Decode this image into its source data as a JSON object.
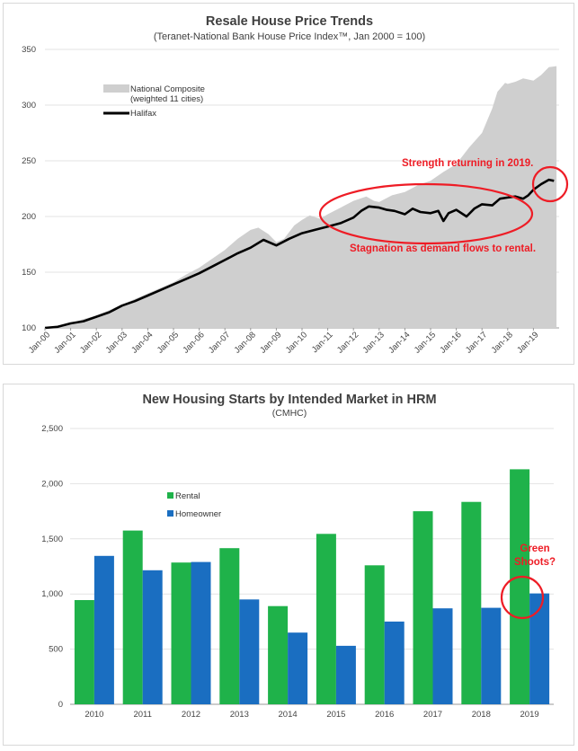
{
  "chart_data": [
    {
      "type": "area",
      "title": "Resale House Price Trends",
      "subtitle": "(Teranet-National Bank House Price Index™, Jan 2000 = 100)",
      "ylim": [
        100,
        350
      ],
      "yticks": [
        "100",
        "150",
        "200",
        "250",
        "300",
        "350"
      ],
      "x_labels": [
        "Jan-00",
        "Jan-01",
        "Jan-02",
        "Jan-03",
        "Jan-04",
        "Jan-05",
        "Jan-06",
        "Jan-07",
        "Jan-08",
        "Jan-09",
        "Jan-10",
        "Jan-11",
        "Jan-12",
        "Jan-13",
        "Jan-14",
        "Jan-15",
        "Jan-16",
        "Jan-17",
        "Jan-18",
        "Jan-19"
      ],
      "grid": true,
      "legend_position": "top-left",
      "series": [
        {
          "name": "National Composite",
          "name_line2": "(weighted 11 cities)",
          "style": "area",
          "color": "#cfcfcf",
          "points": [
            [
              2000.0,
              100
            ],
            [
              2000.5,
              102
            ],
            [
              2001.0,
              104
            ],
            [
              2001.5,
              108
            ],
            [
              2002.0,
              111
            ],
            [
              2002.5,
              116
            ],
            [
              2003.0,
              121
            ],
            [
              2003.5,
              126
            ],
            [
              2004.0,
              131
            ],
            [
              2004.5,
              136
            ],
            [
              2005.0,
              141
            ],
            [
              2005.5,
              148
            ],
            [
              2006.0,
              154
            ],
            [
              2006.5,
              162
            ],
            [
              2007.0,
              170
            ],
            [
              2007.5,
              180
            ],
            [
              2008.0,
              188
            ],
            [
              2008.3,
              190
            ],
            [
              2008.7,
              184
            ],
            [
              2009.0,
              177
            ],
            [
              2009.3,
              180
            ],
            [
              2009.7,
              192
            ],
            [
              2010.0,
              197
            ],
            [
              2010.3,
              201
            ],
            [
              2010.7,
              198
            ],
            [
              2011.0,
              202
            ],
            [
              2011.5,
              208
            ],
            [
              2012.0,
              214
            ],
            [
              2012.5,
              218
            ],
            [
              2012.8,
              214
            ],
            [
              2013.0,
              213
            ],
            [
              2013.5,
              219
            ],
            [
              2014.0,
              222
            ],
            [
              2014.5,
              228
            ],
            [
              2015.0,
              232
            ],
            [
              2015.5,
              240
            ],
            [
              2016.0,
              247
            ],
            [
              2016.5,
              262
            ],
            [
              2017.0,
              275
            ],
            [
              2017.4,
              297
            ],
            [
              2017.6,
              312
            ],
            [
              2017.9,
              320
            ],
            [
              2018.0,
              319
            ],
            [
              2018.3,
              321
            ],
            [
              2018.6,
              324
            ],
            [
              2019.0,
              322
            ],
            [
              2019.3,
              327
            ],
            [
              2019.6,
              334
            ],
            [
              2019.9,
              335
            ]
          ]
        },
        {
          "name": "Halifax",
          "style": "line",
          "color": "#000000",
          "points": [
            [
              2000.0,
              100
            ],
            [
              2000.5,
              101
            ],
            [
              2001.0,
              104
            ],
            [
              2001.5,
              106
            ],
            [
              2002.0,
              110
            ],
            [
              2002.5,
              114
            ],
            [
              2003.0,
              120
            ],
            [
              2003.5,
              124
            ],
            [
              2004.0,
              129
            ],
            [
              2004.5,
              134
            ],
            [
              2005.0,
              139
            ],
            [
              2005.5,
              144
            ],
            [
              2006.0,
              149
            ],
            [
              2006.5,
              155
            ],
            [
              2007.0,
              161
            ],
            [
              2007.5,
              167
            ],
            [
              2008.0,
              172
            ],
            [
              2008.5,
              179
            ],
            [
              2009.0,
              174
            ],
            [
              2009.5,
              180
            ],
            [
              2010.0,
              185
            ],
            [
              2010.5,
              188
            ],
            [
              2011.0,
              191
            ],
            [
              2011.5,
              194
            ],
            [
              2012.0,
              199
            ],
            [
              2012.3,
              205
            ],
            [
              2012.6,
              209
            ],
            [
              2013.0,
              208
            ],
            [
              2013.3,
              206
            ],
            [
              2013.6,
              205
            ],
            [
              2014.0,
              202
            ],
            [
              2014.3,
              207
            ],
            [
              2014.6,
              204
            ],
            [
              2015.0,
              203
            ],
            [
              2015.3,
              205
            ],
            [
              2015.5,
              196
            ],
            [
              2015.7,
              203
            ],
            [
              2016.0,
              206
            ],
            [
              2016.4,
              200
            ],
            [
              2016.7,
              207
            ],
            [
              2017.0,
              211
            ],
            [
              2017.4,
              210
            ],
            [
              2017.7,
              216
            ],
            [
              2018.0,
              217
            ],
            [
              2018.3,
              218
            ],
            [
              2018.6,
              216
            ],
            [
              2018.8,
              219
            ],
            [
              2019.0,
              224
            ],
            [
              2019.3,
              229
            ],
            [
              2019.6,
              233
            ],
            [
              2019.8,
              232
            ]
          ]
        }
      ],
      "annotations": [
        {
          "text": "Strength returning in 2019.",
          "color": "#ee1c25"
        },
        {
          "text": "Stagnation as demand flows to rental.",
          "color": "#ee1c25"
        }
      ]
    },
    {
      "type": "bar",
      "title": "New Housing Starts by Intended Market in HRM",
      "subtitle": "(CMHC)",
      "categories": [
        "2010",
        "2011",
        "2012",
        "2013",
        "2014",
        "2015",
        "2016",
        "2017",
        "2018",
        "2019"
      ],
      "ylim": [
        0,
        2500
      ],
      "yticks": [
        "0",
        "500",
        "1,000",
        "1,500",
        "2,000",
        "2,500"
      ],
      "grid": true,
      "legend_position": "upper-left",
      "series": [
        {
          "name": "Rental",
          "color": "#1fb24a",
          "values": [
            945,
            1575,
            1285,
            1415,
            890,
            1545,
            1260,
            1750,
            1835,
            2130
          ]
        },
        {
          "name": "Homeowner",
          "color": "#1a6ec1",
          "values": [
            1345,
            1215,
            1290,
            950,
            650,
            530,
            750,
            870,
            875,
            1005
          ]
        }
      ],
      "annotations": [
        {
          "text": "Green",
          "color": "#ee1c25"
        },
        {
          "text": "Shoots?",
          "color": "#ee1c25"
        }
      ]
    }
  ]
}
